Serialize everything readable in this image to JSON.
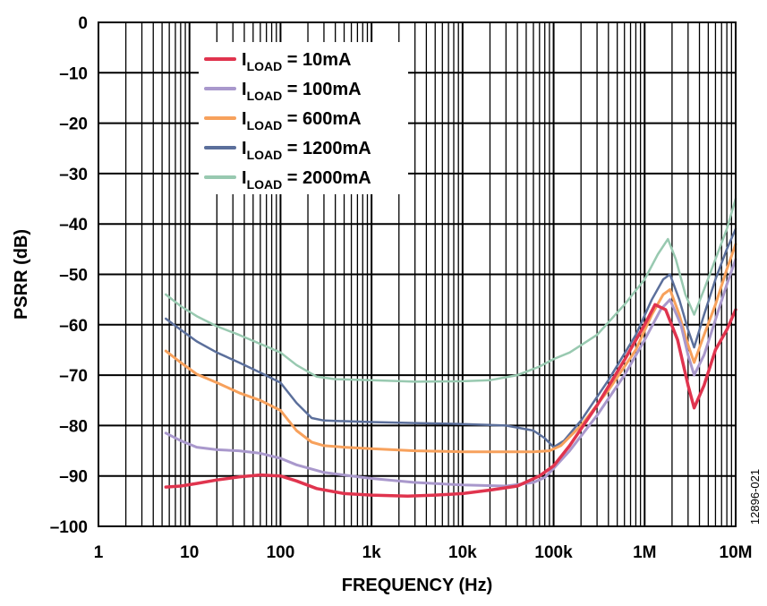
{
  "chart_data": {
    "type": "line",
    "xlabel": "FREQUENCY (Hz)",
    "ylabel": "PSRR (dB)",
    "x_scale": "log",
    "xlim": [
      1,
      10000000
    ],
    "ylim": [
      -100,
      0
    ],
    "grid": true,
    "legend_position": "top-left",
    "figure_id": "12896-021",
    "x_ticks": [
      {
        "value": 1,
        "label": "1"
      },
      {
        "value": 10,
        "label": "10"
      },
      {
        "value": 100,
        "label": "100"
      },
      {
        "value": 1000,
        "label": "1k"
      },
      {
        "value": 10000,
        "label": "10k"
      },
      {
        "value": 100000,
        "label": "100k"
      },
      {
        "value": 1000000,
        "label": "1M"
      },
      {
        "value": 10000000,
        "label": "10M"
      }
    ],
    "y_ticks": [
      {
        "value": 0,
        "label": "0"
      },
      {
        "value": -10,
        "label": "–10"
      },
      {
        "value": -20,
        "label": "–20"
      },
      {
        "value": -30,
        "label": "–30"
      },
      {
        "value": -40,
        "label": "–40"
      },
      {
        "value": -50,
        "label": "–50"
      },
      {
        "value": -60,
        "label": "–60"
      },
      {
        "value": -70,
        "label": "–70"
      },
      {
        "value": -80,
        "label": "–80"
      },
      {
        "value": -90,
        "label": "–90"
      },
      {
        "value": -100,
        "label": "–100"
      }
    ],
    "series": [
      {
        "name_main": "I",
        "name_sub": "LOAD",
        "name_rest": " = 10mA",
        "color": "#e0344e",
        "stroke_width": 3.5,
        "points": [
          [
            5.5,
            -92.2
          ],
          [
            8,
            -92
          ],
          [
            12,
            -91.5
          ],
          [
            20,
            -90.8
          ],
          [
            35,
            -90.2
          ],
          [
            60,
            -89.8
          ],
          [
            100,
            -90
          ],
          [
            150,
            -91
          ],
          [
            250,
            -92.5
          ],
          [
            500,
            -93.5
          ],
          [
            1000,
            -93.8
          ],
          [
            2500,
            -94
          ],
          [
            5000,
            -93.8
          ],
          [
            10000,
            -93.5
          ],
          [
            20000,
            -92.8
          ],
          [
            40000,
            -92
          ],
          [
            70000,
            -90
          ],
          [
            100000,
            -88
          ],
          [
            150000,
            -84
          ],
          [
            300000,
            -76
          ],
          [
            600000,
            -67
          ],
          [
            1000000,
            -60
          ],
          [
            1300000,
            -56
          ],
          [
            1700000,
            -57
          ],
          [
            2300000,
            -63
          ],
          [
            3000000,
            -72
          ],
          [
            3500000,
            -76.5
          ],
          [
            4500000,
            -72
          ],
          [
            6000000,
            -65
          ],
          [
            8000000,
            -61
          ],
          [
            10000000,
            -57
          ]
        ]
      },
      {
        "name_main": "I",
        "name_sub": "LOAD",
        "name_rest": " = 100mA",
        "color": "#a998cc",
        "stroke_width": 3,
        "points": [
          [
            5.5,
            -81.5
          ],
          [
            8,
            -83
          ],
          [
            12,
            -84.3
          ],
          [
            20,
            -84.8
          ],
          [
            35,
            -85
          ],
          [
            60,
            -85.5
          ],
          [
            100,
            -86.5
          ],
          [
            150,
            -87.8
          ],
          [
            300,
            -89.3
          ],
          [
            600,
            -90
          ],
          [
            1000,
            -90.5
          ],
          [
            3000,
            -91.3
          ],
          [
            10000,
            -91.8
          ],
          [
            30000,
            -92
          ],
          [
            60000,
            -91.3
          ],
          [
            80000,
            -90.3
          ],
          [
            100000,
            -88.5
          ],
          [
            150000,
            -85
          ],
          [
            300000,
            -78
          ],
          [
            600000,
            -70
          ],
          [
            1000000,
            -63
          ],
          [
            1500000,
            -57
          ],
          [
            1900000,
            -55
          ],
          [
            2500000,
            -60
          ],
          [
            3000000,
            -66
          ],
          [
            3500000,
            -70
          ],
          [
            4500000,
            -66
          ],
          [
            6000000,
            -59
          ],
          [
            8000000,
            -52
          ],
          [
            10000000,
            -47
          ]
        ]
      },
      {
        "name_main": "I",
        "name_sub": "LOAD",
        "name_rest": " = 600mA",
        "color": "#f7a15c",
        "stroke_width": 3,
        "points": [
          [
            5.5,
            -65.2
          ],
          [
            8,
            -67.5
          ],
          [
            12,
            -69.8
          ],
          [
            20,
            -71.5
          ],
          [
            35,
            -73.5
          ],
          [
            60,
            -75
          ],
          [
            100,
            -77
          ],
          [
            150,
            -81
          ],
          [
            220,
            -83.3
          ],
          [
            300,
            -84
          ],
          [
            500,
            -84.3
          ],
          [
            1000,
            -84.6
          ],
          [
            3000,
            -85
          ],
          [
            10000,
            -85.2
          ],
          [
            30000,
            -85.2
          ],
          [
            60000,
            -85.2
          ],
          [
            90000,
            -85
          ],
          [
            120000,
            -84
          ],
          [
            200000,
            -80
          ],
          [
            400000,
            -73
          ],
          [
            800000,
            -65
          ],
          [
            1200000,
            -58
          ],
          [
            1600000,
            -54
          ],
          [
            1900000,
            -53
          ],
          [
            2400000,
            -58
          ],
          [
            3000000,
            -64
          ],
          [
            3500000,
            -67.5
          ],
          [
            4500000,
            -62
          ],
          [
            6000000,
            -56
          ],
          [
            8000000,
            -49
          ],
          [
            10000000,
            -44
          ]
        ]
      },
      {
        "name_main": "I",
        "name_sub": "LOAD",
        "name_rest": " = 1200mA",
        "color": "#5b6f9b",
        "stroke_width": 2.5,
        "points": [
          [
            5.5,
            -58.8
          ],
          [
            8,
            -61
          ],
          [
            12,
            -63.3
          ],
          [
            20,
            -65.5
          ],
          [
            35,
            -67.5
          ],
          [
            60,
            -69.5
          ],
          [
            100,
            -71.5
          ],
          [
            150,
            -75.5
          ],
          [
            220,
            -78.5
          ],
          [
            300,
            -79
          ],
          [
            1000,
            -79.3
          ],
          [
            3000,
            -79.5
          ],
          [
            10000,
            -79.7
          ],
          [
            30000,
            -80
          ],
          [
            60000,
            -81
          ],
          [
            80000,
            -82.5
          ],
          [
            100000,
            -84.3
          ],
          [
            130000,
            -83
          ],
          [
            200000,
            -79
          ],
          [
            400000,
            -71
          ],
          [
            800000,
            -62
          ],
          [
            1200000,
            -55
          ],
          [
            1600000,
            -51
          ],
          [
            1900000,
            -50
          ],
          [
            2400000,
            -55
          ],
          [
            3000000,
            -61
          ],
          [
            3500000,
            -64.5
          ],
          [
            4500000,
            -58
          ],
          [
            6000000,
            -51
          ],
          [
            8000000,
            -45
          ],
          [
            10000000,
            -41
          ]
        ]
      },
      {
        "name_main": "I",
        "name_sub": "LOAD",
        "name_rest": " = 2000mA",
        "color": "#98c9b0",
        "stroke_width": 2.5,
        "points": [
          [
            5.5,
            -54
          ],
          [
            8,
            -56.3
          ],
          [
            12,
            -58.3
          ],
          [
            20,
            -60.3
          ],
          [
            35,
            -62
          ],
          [
            60,
            -63.8
          ],
          [
            100,
            -65.5
          ],
          [
            150,
            -68
          ],
          [
            250,
            -70.3
          ],
          [
            400,
            -70.8
          ],
          [
            1000,
            -71
          ],
          [
            3000,
            -71.3
          ],
          [
            10000,
            -71.2
          ],
          [
            20000,
            -71
          ],
          [
            40000,
            -70
          ],
          [
            70000,
            -68.3
          ],
          [
            100000,
            -66.8
          ],
          [
            150000,
            -65.5
          ],
          [
            300000,
            -62
          ],
          [
            600000,
            -56
          ],
          [
            1000000,
            -51
          ],
          [
            1400000,
            -46
          ],
          [
            1800000,
            -43
          ],
          [
            2200000,
            -47
          ],
          [
            2800000,
            -54
          ],
          [
            3500000,
            -58
          ],
          [
            4500000,
            -53
          ],
          [
            6000000,
            -47
          ],
          [
            8000000,
            -41
          ],
          [
            10000000,
            -35
          ]
        ]
      }
    ]
  }
}
